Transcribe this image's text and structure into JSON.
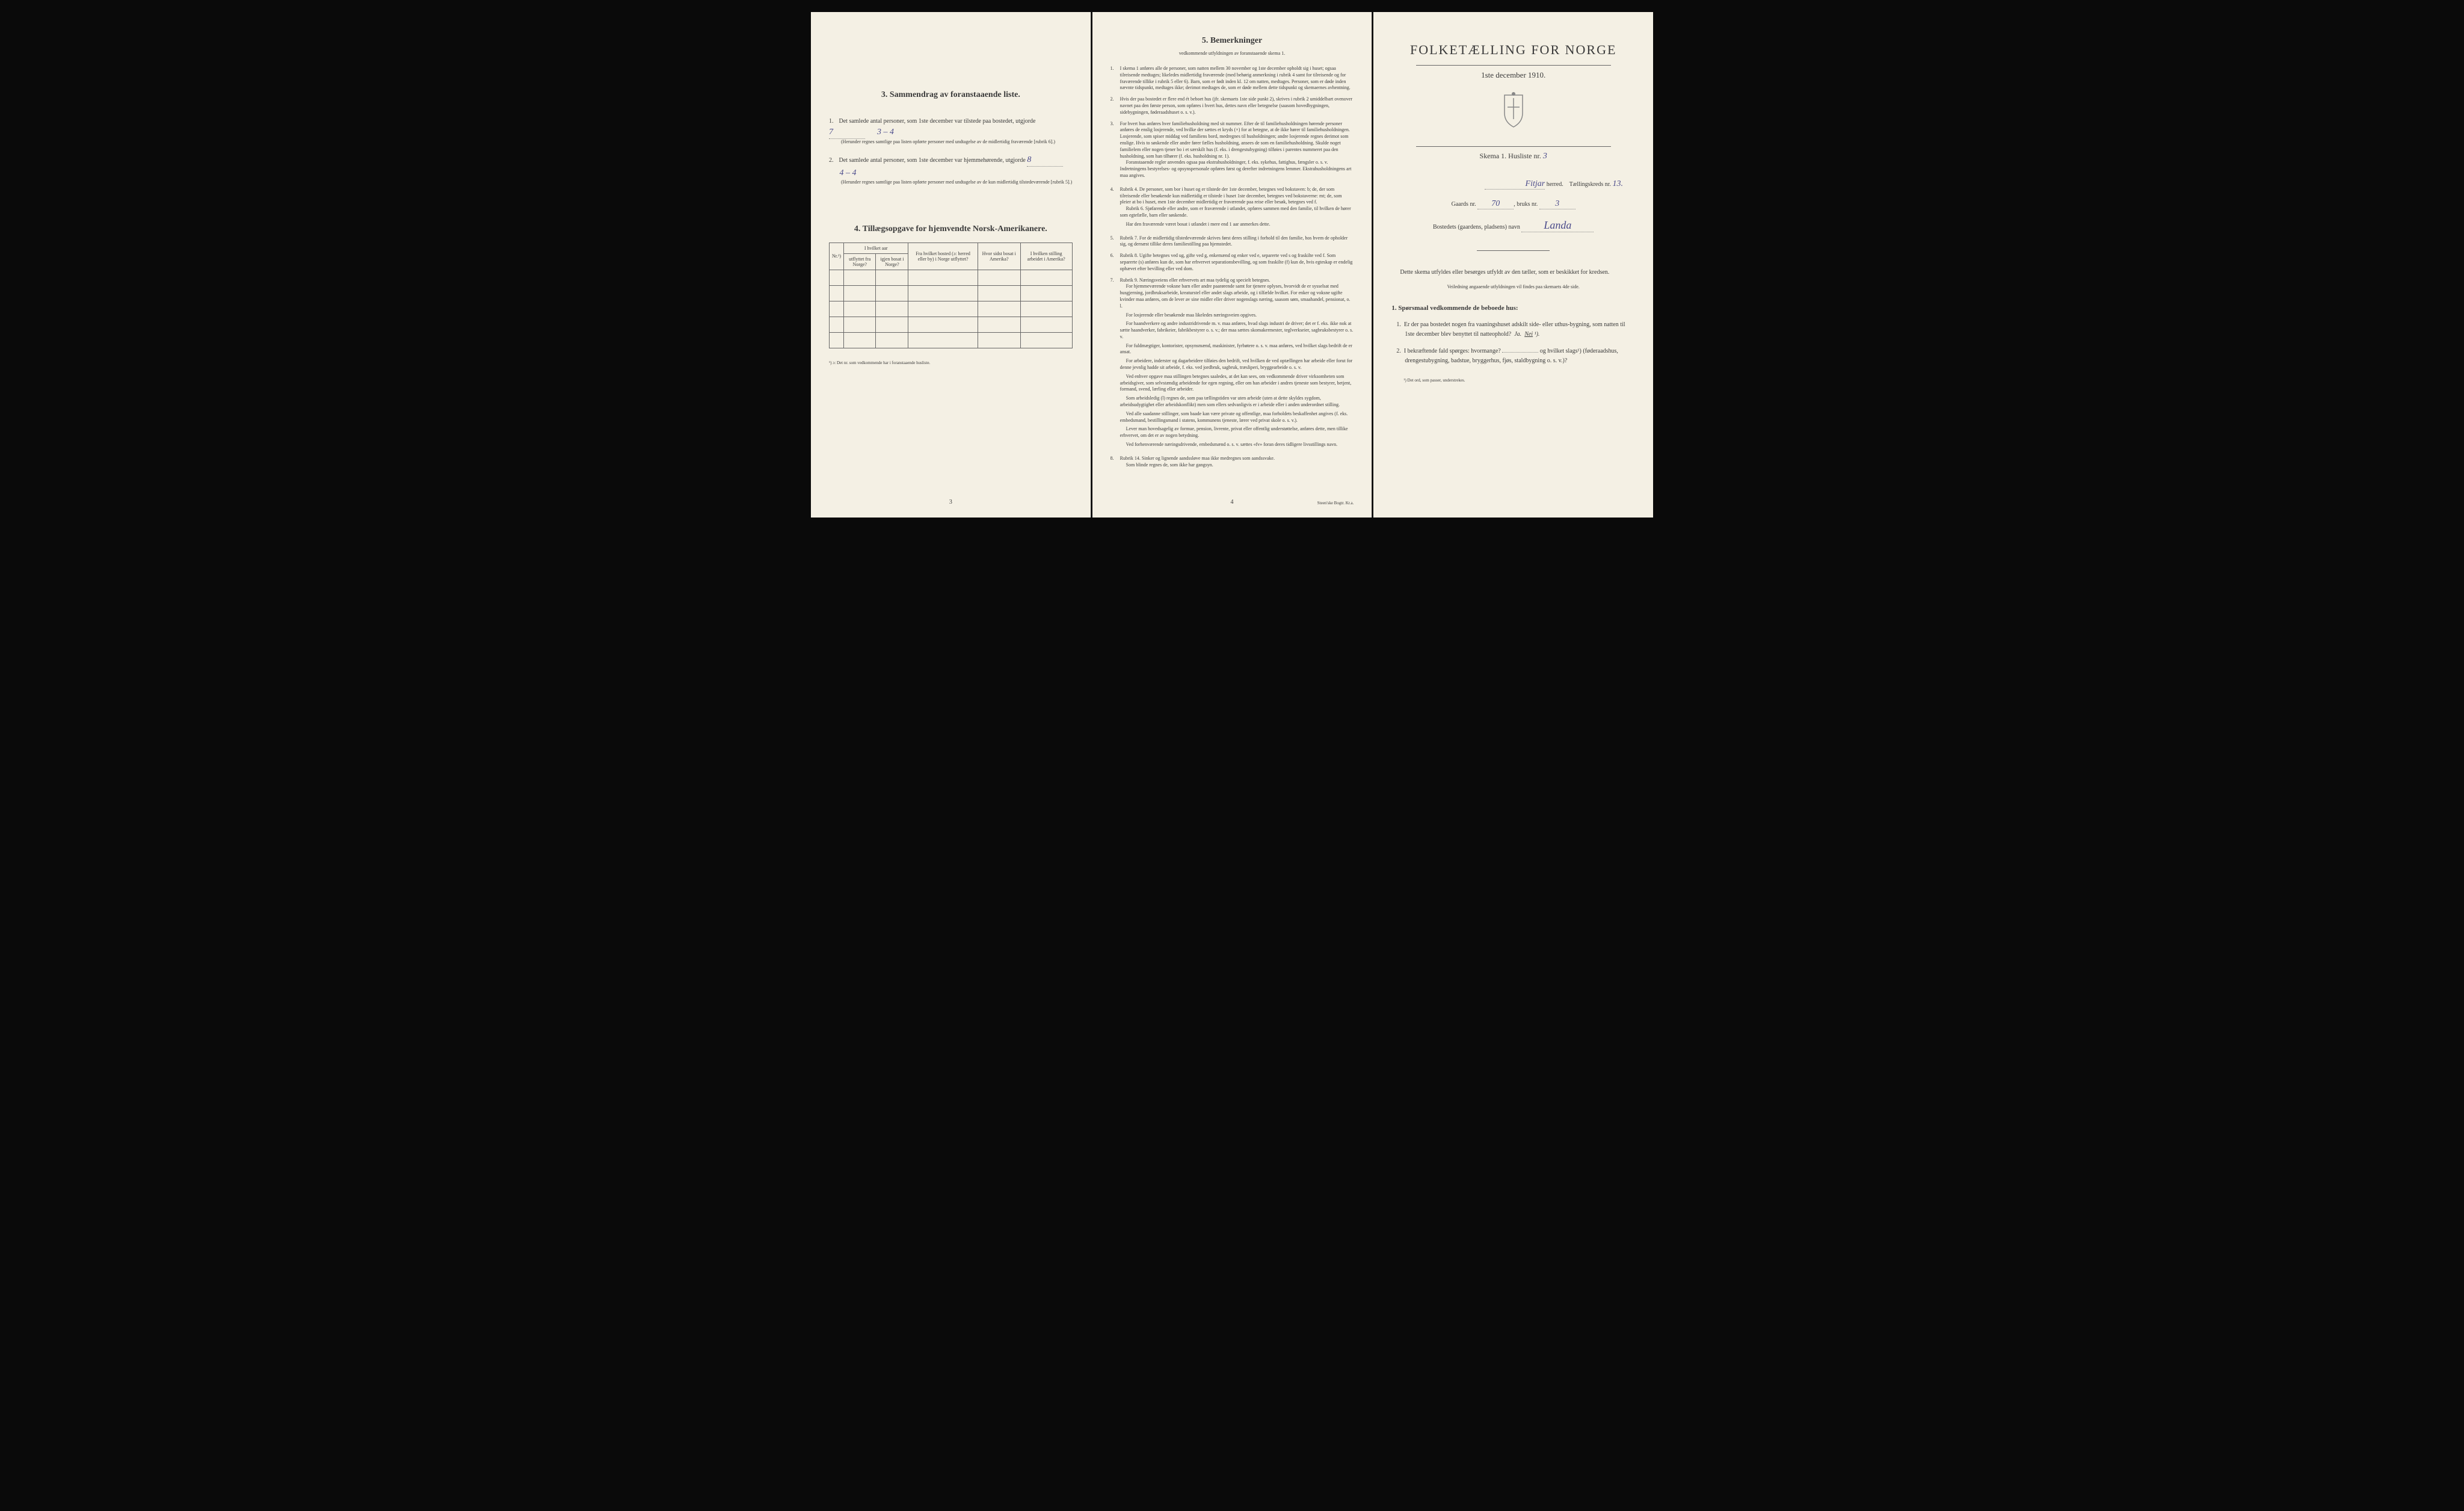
{
  "colors": {
    "paper": "#f4f0e4",
    "text": "#3a3a3a",
    "handwritten": "#4a4a8a",
    "background": "#0a0a0a"
  },
  "left": {
    "section3": {
      "heading": "3.   Sammendrag av foranstaaende liste.",
      "item1": {
        "text": "Det samlede antal personer, som 1ste december var tilstede paa bostedet, utgjorde",
        "value": "7",
        "valueExtra": "3 – 4",
        "note": "(Herunder regnes samtlige paa listen opførte personer med undtagelse av de midlertidig fraværende [rubrik 6].)"
      },
      "item2": {
        "text": "Det samlede antal personer, som 1ste december var hjemmehørende, utgjorde",
        "value": "8",
        "valueExtra": "4 – 4",
        "note": "(Herunder regnes samtlige paa listen opførte personer med undtagelse av de kun midlertidig tilstedeværende [rubrik 5].)"
      }
    },
    "section4": {
      "heading": "4.  Tillægsopgave for hjemvendte Norsk-Amerikanere.",
      "tableHeaders": {
        "col1": "Nr.¹)",
        "col2top": "I hvilket aar",
        "col2aLabel": "utflyttet fra Norge?",
        "col2bLabel": "igjen bosat i Norge?",
        "col3": "Fra hvilket bosted (ɔ: herred eller by) i Norge utflyttet?",
        "col4": "Hvor sidst bosat i Amerika?",
        "col5": "I hvilken stilling arbeidet i Amerika?"
      },
      "footnote": "¹) ɔ: Det nr. som vedkommende har i foranstaaende husliste."
    },
    "pageNum": "3"
  },
  "middle": {
    "heading": "5.    Bemerkninger",
    "subheading": "vedkommende utfyldningen av foranstaaende skema 1.",
    "items": [
      {
        "num": "1.",
        "content": "I skema 1 anføres alle de personer, som natten mellem 30 november og 1ste december opholdt sig i huset; ogsaa tilreisende medtages; likeledes midlertidig fraværende (med behørig anmerkning i rubrik 4 samt for tilreisende og for fraværende tillike i rubrik 5 eller 6). Barn, som er født inden kl. 12 om natten, medtages. Personer, som er døde inden nævnte tidspunkt, medtages ikke; derimot medtages de, som er døde mellem dette tidspunkt og skemaernes avhentning."
      },
      {
        "num": "2.",
        "content": "Hvis der paa bostedet er flere end ét beboet hus (jfr. skemaets 1ste side punkt 2), skrives i rubrik 2 umiddelbart ovenover navnet paa den første person, som opføres i hvert hus, dettes navn eller betegnelse (saasom hovedbygningen, sidebygningen, føderaadshuset o. s. v.)."
      },
      {
        "num": "3.",
        "content": "For hvert hus anføres hver familiehusholdning med sit nummer. Efter de til familiehusholdningen hørende personer anføres de enslig losjerende, ved hvilke der sættes et kryds (×) for at betegne, at de ikke hører til familiehusholdningen. Losjerende, som spiser middag ved familiens bord, medregnes til husholdningen; andre losjerende regnes derimot som enslige. Hvis to søskende eller andre fører fælles husholdning, ansees de som en familiehusholdning. Skulde noget familielem eller nogen tjener bo i et særskilt hus (f. eks. i drengestubygning) tilføies i parentes nummeret paa den husholdning, som han tilhører (f. eks. husholdning nr. 1).",
        "extras": [
          "Foranstaaende regler anvendes ogsaa paa ekstrahusholdninger, f. eks. sykehus, fattighus, fængsler o. s. v. Indretningens bestyrelses- og opsynspersonale opføres først og derefter indretningens lemmer. Ekstrahusholdningens art maa angives."
        ]
      },
      {
        "num": "4.",
        "content": "Rubrik 4. De personer, som bor i huset og er tilstede der 1ste december, betegnes ved bokstaven: b; de, der som tilreisende eller besøkende kun midlertidig er tilstede i huset 1ste december, betegnes ved bokstaverne: mt; de, som pleier at bo i huset, men 1ste december midlertidig er fraværende paa reise eller besøk, betegnes ved f.",
        "extras": [
          "Rubrik 6. Sjøfarende eller andre, som er fraværende i utlandet, opføres sammen med den familie, til hvilken de hører som egtefælle, barn eller søskende.",
          "Har den fraværende været bosat i utlandet i mere end 1 aar anmerkes dette."
        ]
      },
      {
        "num": "5.",
        "content": "Rubrik 7. For de midlertidig tilstedeværende skrives først deres stilling i forhold til den familie, hos hvem de opholder sig, og dernæst tillike deres familiestilling paa hjemstedet."
      },
      {
        "num": "6.",
        "content": "Rubrik 8. Ugifte betegnes ved ug, gifte ved g, enkemænd og enker ved e, separerte ved s og fraskilte ved f. Som separerte (s) anføres kun de, som har erhvervet separationsbevilling, og som fraskilte (f) kun de, hvis egteskap er endelig ophævet efter bevilling eller ved dom."
      },
      {
        "num": "7.",
        "content": "Rubrik 9. Næringsveiens eller erhvervets art maa tydelig og specielt betegnes.",
        "extras": [
          "For hjemmeværende voksne barn eller andre paarørende samt for tjenere oplyses, hvorvidt de er sysselsat med husgjerning, jordbruksarbeide, kreaturstel eller andet slags arbeide, og i tilfælde hvilket. For enker og voksne ugifte kvinder maa anføres, om de lever av sine midler eller driver nogenslags næring, saasom søm, smaahandel, pensionat, o. l.",
          "For losjerende eller besøkende maa likeledes næringsveien opgives.",
          "For haandverkere og andre industridrivende m. v. maa anføres, hvad slags industri de driver; det er f. eks. ikke nok at sætte haandverker, fabrikeier, fabrikbestyrer o. s. v.; der maa sættes skomakermester, teglverkseier, sagbruksbestyrer o. s. v.",
          "For fuldmægtiger, kontorister, opsynsmænd, maskinister, fyrbøtere o. s. v. maa anføres, ved hvilket slags bedrift de er ansat.",
          "For arbeidere, inderster og dagarbeidere tilføies den bedrift, ved hvilken de ved optællingen har arbeide eller forut for denne jevnlig hadde sit arbeide, f. eks. ved jordbruk, sagbruk, træsliperi, bryggearbeide o. s. v.",
          "Ved enhver opgave maa stillingen betegnes saaledes, at det kan sees, om vedkommende driver virksomheten som arbeidsgiver, som selvstændig arbeidende for egen regning, eller om han arbeider i andres tjeneste som bestyrer, betjent, formand, svend, lærling eller arbeider.",
          "Som arbeidsledig (l) regnes de, som paa tællingstiden var uten arbeide (uten at dette skyldes sygdom, arbeidsudygtighet eller arbeidskonflikt) men som ellers sedvanligvis er i arbeide eller i anden underordnet stilling.",
          "Ved alle saadanne stillinger, som baade kan være private og offentlige, maa forholdets beskaffenhet angives (f. eks. embedsmand, bestillingsmand i statens, kommunens tjeneste, lærer ved privat skole o. s. v.).",
          "Lever man hovedsagelig av formue, pension, livrente, privat eller offentlig understøttelse, anføres dette, men tillike erhvervet, om det er av nogen betydning.",
          "Ved forhenværende næringsdrivende, embedsmænd o. s. v. sættes «fv» foran deres tidligere livsstillings navn."
        ]
      },
      {
        "num": "8.",
        "content": "Rubrik 14. Sinker og lignende aandssløve maa ikke medregnes som aandssvake.",
        "extras": [
          "Som blinde regnes de, som ikke har gangsyn."
        ]
      }
    ],
    "pageNum": "4",
    "printer": "Steen'ske Bogtr.  Kr.a."
  },
  "right": {
    "mainTitle": "FOLKETÆLLING FOR NORGE",
    "subtitle": "1ste december 1910.",
    "skemaLabel": "Skema 1.   Husliste nr.",
    "skemaValue": "3",
    "herredLabel": "herred.",
    "herredValue": "Fitjar",
    "kredsLabel": "Tællingskreds nr.",
    "kredsValue": "13.",
    "gaardsLabel": "Gaards nr.",
    "gaardsValue": "70",
    "bruksLabel": "bruks nr.",
    "bruksValue": "3",
    "bostedLabel": "Bostedets (gaardens, pladsens) navn",
    "bostedValue": "Landa",
    "instructionText": "Dette skema utfyldes eller besørges utfyldt av den tæller, som er beskikket for kredsen.",
    "instructionNote": "Veiledning angaaende utfyldningen vil findes paa skemaets 4de side.",
    "questionsHeading": "1.  Spørsmaal vedkommende de beboede hus:",
    "q1": {
      "text": "Er der paa bostedet nogen fra vaaningshuset adskilt side- eller uthus-bygning, som natten til 1ste december blev benyttet til natteophold?",
      "options": "Ja.  Nei ¹)."
    },
    "q2": {
      "text": "I bekræftende fald spørges: hvormange?",
      "text2": "og hvilket slags¹) (føderaadshus, drengestubygning, badstue, bryggerhus, fjøs, staldbygning o. s. v.)?"
    },
    "footnote": "¹) Det ord, som passer, understrekes."
  }
}
